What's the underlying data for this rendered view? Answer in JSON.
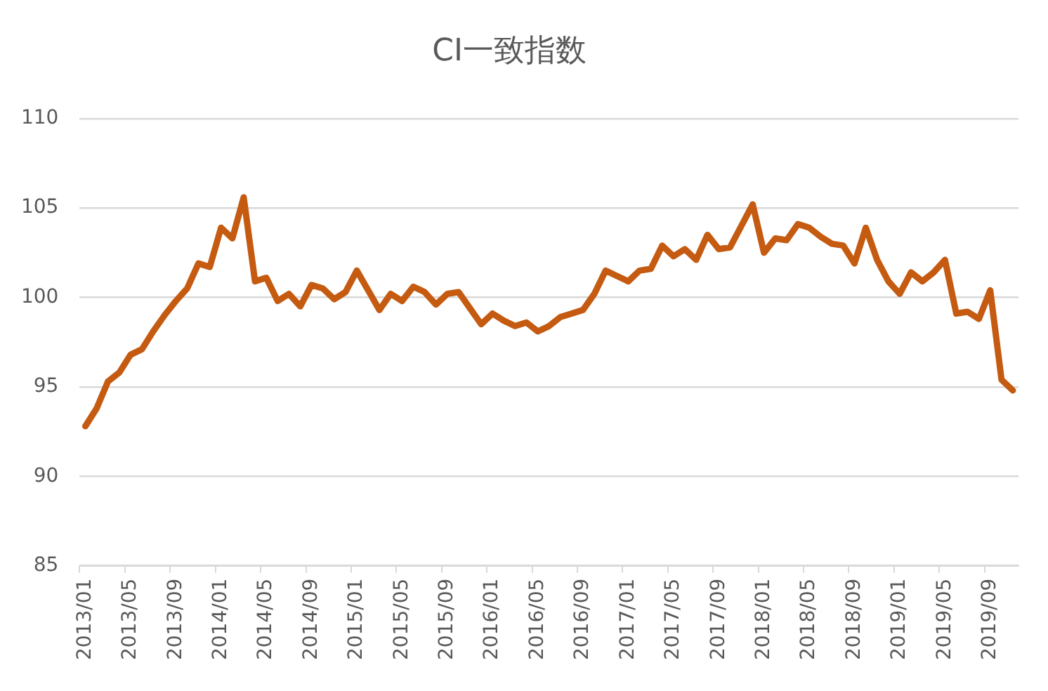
{
  "chart_data": {
    "type": "line",
    "title": "CI一致指数",
    "categories": [
      "2013/01",
      null,
      null,
      null,
      "2013/05",
      null,
      null,
      null,
      "2013/09",
      null,
      null,
      null,
      "2014/01",
      null,
      null,
      null,
      "2014/05",
      null,
      null,
      null,
      "2014/09",
      null,
      null,
      null,
      "2015/01",
      null,
      null,
      null,
      "2015/05",
      null,
      null,
      null,
      "2015/09",
      null,
      null,
      null,
      "2016/01",
      null,
      null,
      null,
      "2016/05",
      null,
      null,
      null,
      "2016/09",
      null,
      null,
      null,
      "2017/01",
      null,
      null,
      null,
      "2017/05",
      null,
      null,
      null,
      "2017/09",
      null,
      null,
      null,
      "2018/01",
      null,
      null,
      null,
      "2018/05",
      null,
      null,
      null,
      "2018/09",
      null,
      null,
      null,
      "2019/01",
      null,
      null,
      null,
      "2019/05",
      null,
      null,
      null,
      "2019/09",
      null,
      null
    ],
    "values": [
      92.8,
      93.8,
      95.3,
      95.8,
      96.8,
      97.1,
      98.1,
      99.0,
      99.8,
      100.5,
      101.9,
      101.7,
      103.9,
      103.3,
      105.6,
      100.9,
      101.1,
      99.8,
      100.2,
      99.5,
      100.7,
      100.5,
      99.9,
      100.3,
      101.5,
      100.4,
      99.3,
      100.2,
      99.8,
      100.6,
      100.3,
      99.6,
      100.2,
      100.3,
      99.4,
      98.5,
      99.1,
      98.7,
      98.4,
      98.6,
      98.1,
      98.4,
      98.9,
      99.1,
      99.3,
      100.2,
      101.5,
      101.2,
      100.9,
      101.5,
      101.6,
      102.9,
      102.3,
      102.7,
      102.1,
      103.5,
      102.7,
      102.8,
      104.0,
      105.2,
      102.5,
      103.3,
      103.2,
      104.1,
      103.9,
      103.4,
      103.0,
      102.9,
      101.9,
      103.9,
      102.1,
      100.9,
      100.2,
      101.4,
      100.9,
      101.4,
      102.1,
      99.1,
      99.2,
      98.8,
      100.4,
      95.4,
      94.8
    ],
    "color": "#c55a11",
    "ylim": [
      85,
      110
    ],
    "yticks": [
      85,
      90,
      95,
      100,
      105,
      110
    ],
    "grid": "y",
    "marker": "none",
    "line_style": "solid"
  }
}
